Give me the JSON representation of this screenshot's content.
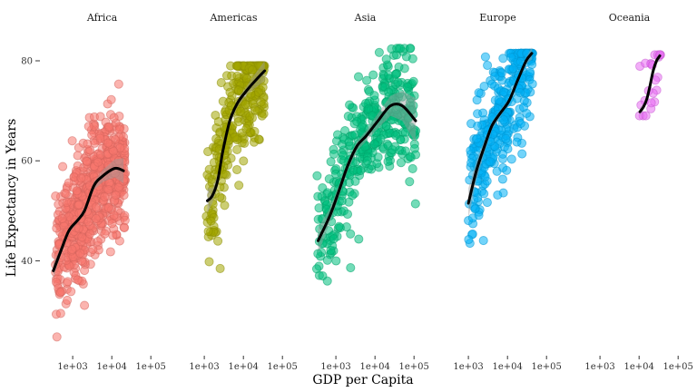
{
  "chart_data": {
    "type": "scatter",
    "title": "",
    "xlabel": "GDP per Capita",
    "ylabel": "Life Expectancy in Years",
    "x_scale": "log10",
    "xlim": [
      200,
      160000
    ],
    "ylim": [
      21,
      86
    ],
    "x_ticks": [
      1000,
      10000,
      100000
    ],
    "x_tick_labels": [
      "1e+03",
      "1e+04",
      "1e+05"
    ],
    "y_ticks": [
      40,
      60,
      80
    ],
    "y_tick_labels": [
      "40",
      "60",
      "80"
    ],
    "grid": false,
    "legend": "none",
    "facets": [
      {
        "name": "Africa",
        "color": "#F8766D",
        "points": {
          "x_log_range": [
            2.55,
            4.35
          ],
          "y_range": [
            23,
            76.5
          ],
          "n": 700
        },
        "trend": [
          [
            320,
            38
          ],
          [
            500,
            42
          ],
          [
            800,
            46
          ],
          [
            1300,
            48
          ],
          [
            2000,
            50
          ],
          [
            3500,
            55
          ],
          [
            6000,
            57
          ],
          [
            12000,
            58.5
          ],
          [
            20000,
            58
          ]
        ],
        "band_halfwidth": [
          1.5,
          0.8,
          0.5,
          0.5,
          0.6,
          0.8,
          1.2,
          1.8,
          2.5
        ]
      },
      {
        "name": "Americas",
        "color": "#A3A500",
        "points": {
          "x_log_range": [
            3.05,
            4.55
          ],
          "y_range": [
            37.5,
            79
          ],
          "n": 300
        },
        "trend": [
          [
            1200,
            52
          ],
          [
            1600,
            53
          ],
          [
            2200,
            56
          ],
          [
            3000,
            62
          ],
          [
            4500,
            68
          ],
          [
            7000,
            71.5
          ],
          [
            12000,
            74
          ],
          [
            20000,
            76
          ],
          [
            35000,
            78
          ]
        ],
        "band_halfwidth": [
          2.5,
          1.5,
          1.2,
          1.0,
          0.8,
          0.8,
          0.9,
          1.4,
          2.0
        ]
      },
      {
        "name": "Asia",
        "color": "#00BF7D",
        "points": {
          "x_log_range": [
            2.5,
            5.05
          ],
          "y_range": [
            28.5,
            82.5
          ],
          "n": 400
        },
        "trend": [
          [
            350,
            44
          ],
          [
            700,
            49
          ],
          [
            1200,
            54
          ],
          [
            2000,
            59
          ],
          [
            3500,
            63
          ],
          [
            6000,
            65
          ],
          [
            12000,
            68
          ],
          [
            25000,
            71
          ],
          [
            50000,
            71
          ],
          [
            110000,
            68
          ]
        ],
        "band_halfwidth": [
          2.5,
          1.5,
          1.2,
          1.0,
          1.0,
          1.0,
          1.5,
          2.0,
          3.0,
          4.5
        ]
      },
      {
        "name": "Europe",
        "color": "#00B0F6",
        "points": {
          "x_log_range": [
            3.0,
            4.65
          ],
          "y_range": [
            43.5,
            81.5
          ],
          "n": 350
        },
        "trend": [
          [
            1000,
            51.5
          ],
          [
            1600,
            58
          ],
          [
            2600,
            63
          ],
          [
            4000,
            67
          ],
          [
            6500,
            69.5
          ],
          [
            11000,
            72
          ],
          [
            18000,
            76
          ],
          [
            30000,
            80
          ],
          [
            42000,
            81.5
          ]
        ],
        "band_halfwidth": [
          3.0,
          2.0,
          1.2,
          0.8,
          0.6,
          0.5,
          0.5,
          0.7,
          1.2
        ]
      },
      {
        "name": "Oceania",
        "color": "#E76BF3",
        "points": {
          "x_log_range": [
            4.0,
            4.55
          ],
          "y_range": [
            69,
            81.2
          ],
          "n": 24
        },
        "trend": [
          [
            10500,
            69.8
          ],
          [
            13000,
            70.8
          ],
          [
            16000,
            72.5
          ],
          [
            19000,
            75
          ],
          [
            23000,
            78
          ],
          [
            28000,
            80
          ],
          [
            34000,
            81
          ]
        ],
        "band_halfwidth": [
          0.8,
          0.6,
          0.5,
          0.5,
          0.5,
          0.6,
          0.9
        ]
      }
    ]
  }
}
